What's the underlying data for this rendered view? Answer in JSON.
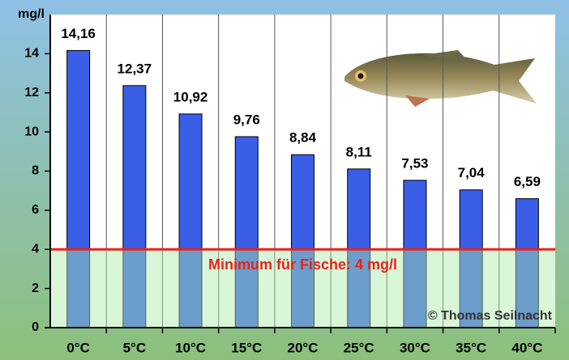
{
  "chart_data": {
    "type": "bar",
    "y_label": "mg/l",
    "categories": [
      "0°C",
      "5°C",
      "10°C",
      "15°C",
      "20°C",
      "25°C",
      "30°C",
      "35°C",
      "40°C"
    ],
    "values": [
      14.16,
      12.37,
      10.92,
      9.76,
      8.84,
      8.11,
      7.53,
      7.04,
      6.59
    ],
    "value_labels": [
      "14,16",
      "12,37",
      "10,92",
      "9,76",
      "8,84",
      "8,11",
      "7,53",
      "7,04",
      "6,59"
    ],
    "color": "#3b5ee6",
    "ylim": [
      0,
      16
    ],
    "yticks": [
      0,
      2,
      4,
      6,
      8,
      10,
      12,
      14
    ],
    "grid": true,
    "threshold": {
      "value": 4,
      "label": "Minimum für Fische: 4 mg/l",
      "color": "#e8221c"
    },
    "credit": "© Thomas Seilnacht"
  }
}
